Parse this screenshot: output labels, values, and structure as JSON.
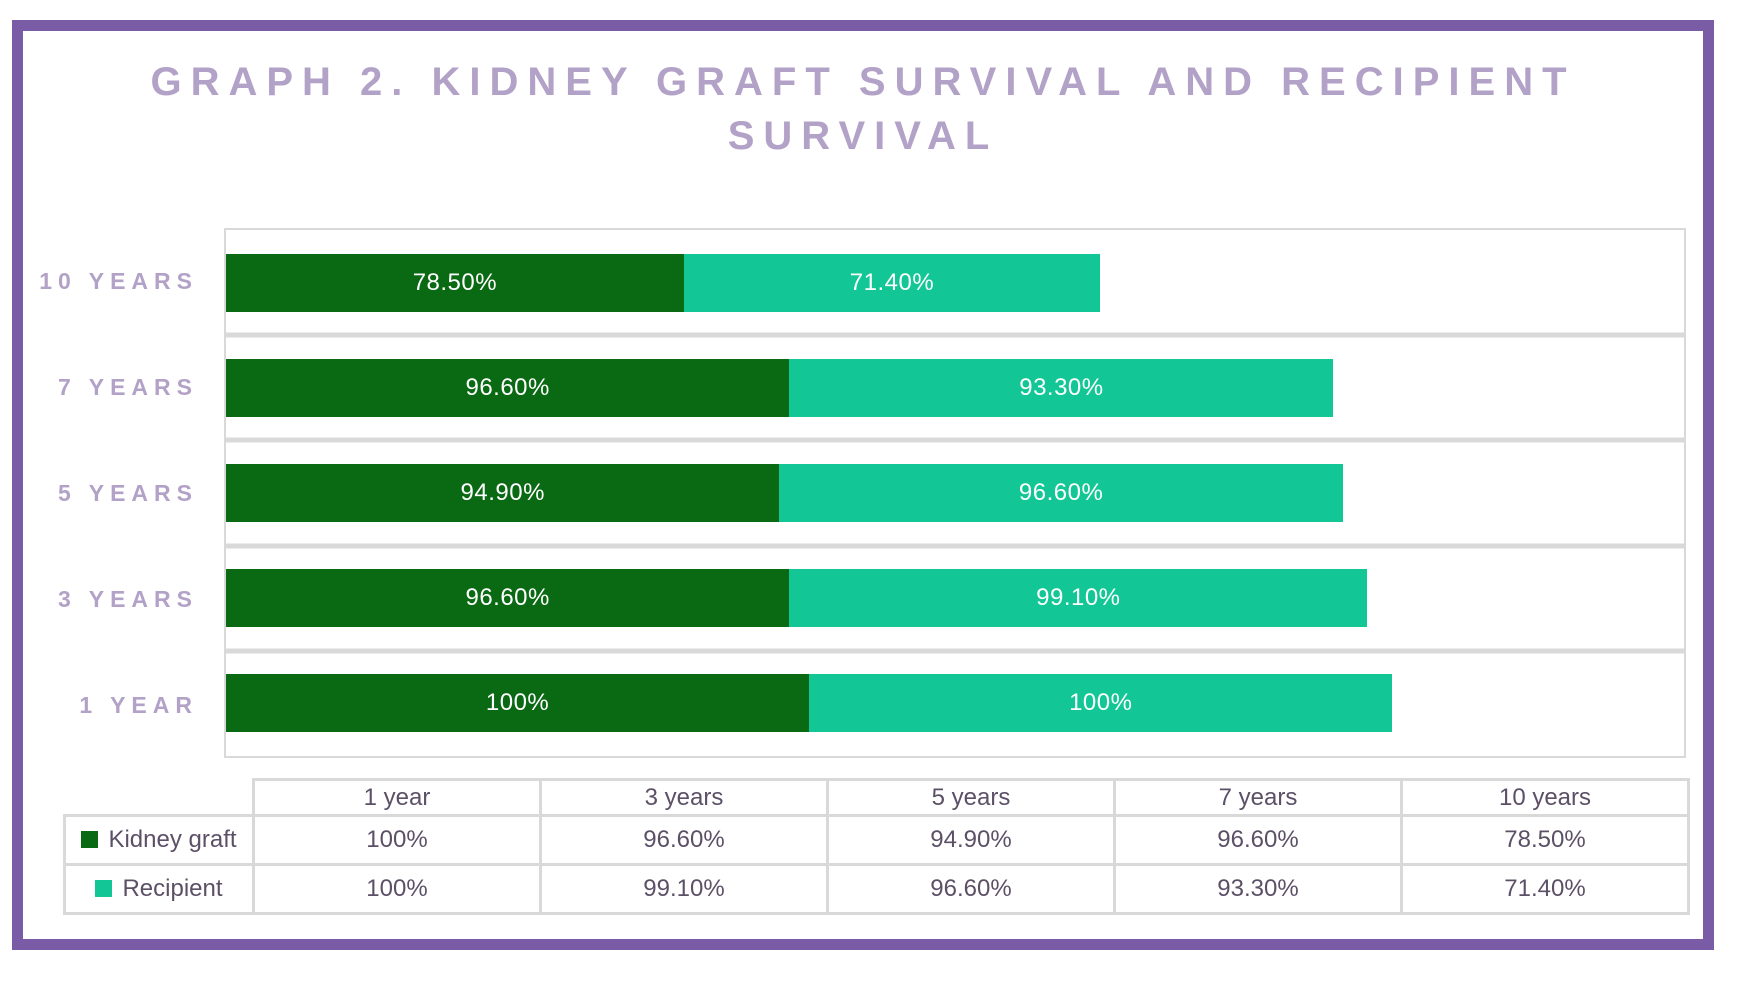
{
  "header": {
    "line1": "GRAPH 2. KIDNEY GRAFT SURVIVAL AND RECIPIENT",
    "line2": "SURVIVAL"
  },
  "colors": {
    "frame": "#7a5ba5",
    "title_text": "#b3a2c7",
    "category_text": "#b3a2c7",
    "kidney_graft_green": "#0a6913",
    "recipient_teal": "#12c795",
    "grid_grey": "#d9d9d9",
    "table_text": "#5c5067",
    "bar_label_text": "#ffffff"
  },
  "chart_data": {
    "type": "bar",
    "orientation": "horizontal",
    "stacked": true,
    "title": "GRAPH 2. KIDNEY GRAFT SURVIVAL AND RECIPIENT SURVIVAL",
    "categories": [
      "10 YEARS",
      "7 YEARS",
      "5 YEARS",
      "3 YEARS",
      "1 YEAR"
    ],
    "series": [
      {
        "name": "Kidney graft",
        "color": "#0a6913",
        "values": [
          78.5,
          96.6,
          94.9,
          96.6,
          100
        ],
        "labels": [
          "78.50%",
          "96.60%",
          "94.90%",
          "96.60%",
          "100%"
        ]
      },
      {
        "name": "Recipient",
        "color": "#12c795",
        "values": [
          71.4,
          93.3,
          96.6,
          99.1,
          100
        ],
        "labels": [
          "71.40%",
          "93.30%",
          "96.60%",
          "99.10%",
          "100%"
        ]
      }
    ],
    "xlabel": "",
    "ylabel": "",
    "xlim": [
      0,
      250
    ],
    "grid": "horizontal category separators only",
    "legend_position": "table below chart"
  },
  "table": {
    "headers": [
      "",
      "1 year",
      "3 years",
      "5 years",
      "7 years",
      "10 years"
    ],
    "rows": [
      {
        "label": "Kidney graft",
        "values": [
          "100%",
          "96.60%",
          "94.90%",
          "96.60%",
          "78.50%"
        ]
      },
      {
        "label": "Recipient",
        "values": [
          "100%",
          "99.10%",
          "96.60%",
          "93.30%",
          "71.40%"
        ]
      }
    ]
  }
}
